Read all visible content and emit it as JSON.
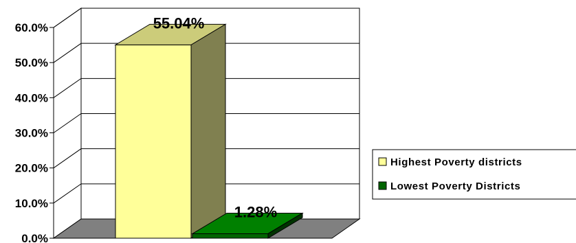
{
  "chart_data": {
    "type": "bar",
    "style": "3d-column",
    "categories": [
      "Highest Poverty districts",
      "Lowest Poverty Districts"
    ],
    "values": [
      55.04,
      1.28
    ],
    "data_labels": [
      "55.04%",
      "1.28%"
    ],
    "ylim": [
      0,
      60
    ],
    "y_ticks": [
      "0.0%",
      "10.0%",
      "20.0%",
      "30.0%",
      "40.0%",
      "50.0%",
      "60.0%"
    ],
    "grid": true,
    "legend_position": "right",
    "legend": [
      "Highest Poverty districts",
      "Lowest Poverty Districts"
    ],
    "colors": {
      "bar1_front": "#FFFF99",
      "bar1_top": "#CCCC7A",
      "bar1_side": "#808050",
      "bar2_front": "#006400",
      "bar2_top": "#008000",
      "bar2_side": "#003300",
      "floor": "#808080",
      "grid": "#000000"
    }
  }
}
